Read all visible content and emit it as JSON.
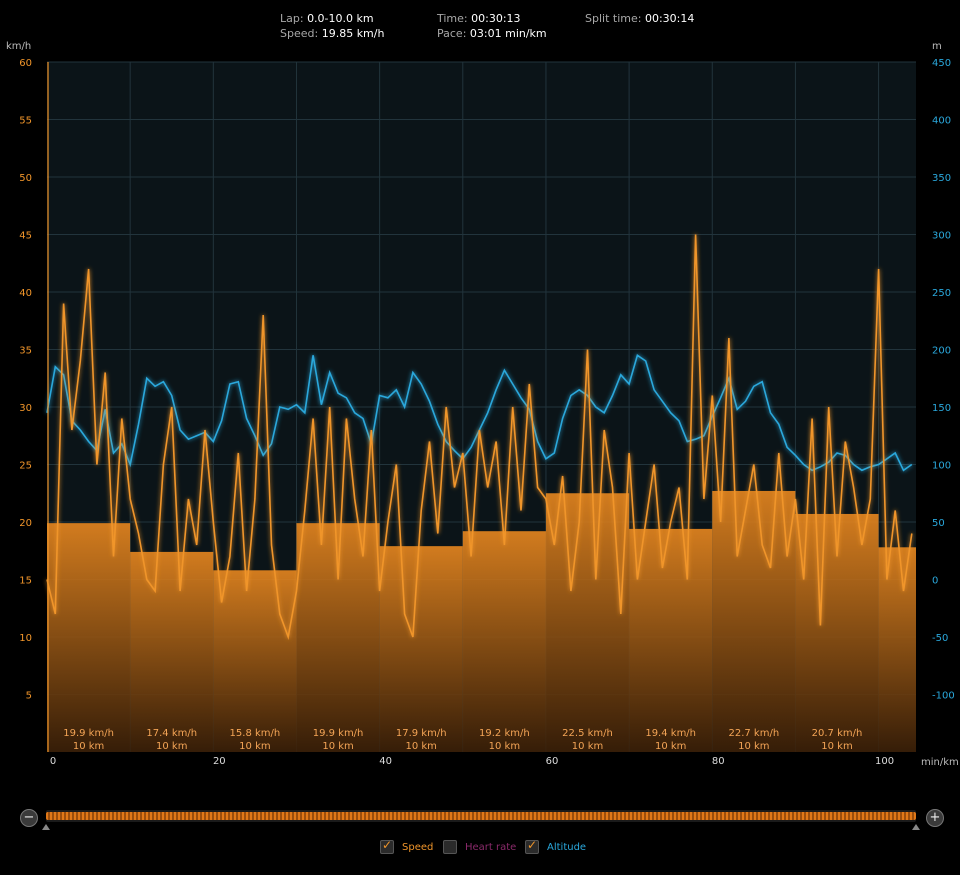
{
  "stats": {
    "lap_label": "Lap:",
    "lap_value": "0.0-10.0 km",
    "speed_label": "Speed:",
    "speed_value": "19.85 km/h",
    "time_label": "Time:",
    "time_value": "00:30:13",
    "pace_label": "Pace:",
    "pace_value": "03:01 min/km",
    "split_label": "Split time:",
    "split_value": "00:30:14"
  },
  "colors": {
    "speed": "#f0952a",
    "altitude": "#2aa8dc",
    "heart_rate": "#8a2a6a",
    "background": "#0b1418",
    "grid": "#22343c"
  },
  "legend": {
    "speed": {
      "label": "Speed",
      "checked": true
    },
    "heart_rate": {
      "label": "Heart rate",
      "checked": false
    },
    "altitude": {
      "label": "Altitude",
      "checked": true
    }
  },
  "zoom": {
    "out_glyph": "−",
    "in_glyph": "+"
  },
  "slider": {
    "start_fraction": 0.0,
    "end_fraction": 1.0
  },
  "chart_data": {
    "type": "line",
    "ylabel_left": "km/h",
    "ylabel_right": "m",
    "xlabel": "min/km",
    "ylim_left": [
      0,
      60
    ],
    "ylim_right": [
      -150,
      450
    ],
    "xlim": [
      0,
      104.5
    ],
    "yticks_left": [
      "5",
      "10",
      "15",
      "20",
      "25",
      "30",
      "35",
      "40",
      "45",
      "50",
      "55",
      "60"
    ],
    "yticks_right": [
      "-100",
      "-50",
      "0",
      "50",
      "100",
      "150",
      "200",
      "250",
      "300",
      "350",
      "400",
      "450"
    ],
    "xticks": [
      "0",
      "20",
      "40",
      "60",
      "80",
      "100"
    ],
    "grid": true,
    "laps": [
      {
        "x0": 0,
        "x1": 10,
        "speed": 19.9,
        "label": "19.9 km/h",
        "sub": "10 km"
      },
      {
        "x0": 10,
        "x1": 20,
        "speed": 17.4,
        "label": "17.4 km/h",
        "sub": "10 km"
      },
      {
        "x0": 20,
        "x1": 30,
        "speed": 15.8,
        "label": "15.8 km/h",
        "sub": "10 km"
      },
      {
        "x0": 30,
        "x1": 40,
        "speed": 19.9,
        "label": "19.9 km/h",
        "sub": "10 km"
      },
      {
        "x0": 40,
        "x1": 50,
        "speed": 17.9,
        "label": "17.9 km/h",
        "sub": "10 km"
      },
      {
        "x0": 50,
        "x1": 60,
        "speed": 19.2,
        "label": "19.2 km/h",
        "sub": "10 km"
      },
      {
        "x0": 60,
        "x1": 70,
        "speed": 22.5,
        "label": "22.5 km/h",
        "sub": "10 km"
      },
      {
        "x0": 70,
        "x1": 80,
        "speed": 19.4,
        "label": "19.4 km/h",
        "sub": "10 km"
      },
      {
        "x0": 80,
        "x1": 90,
        "speed": 22.7,
        "label": "22.7 km/h",
        "sub": "10 km"
      },
      {
        "x0": 90,
        "x1": 100,
        "speed": 20.7,
        "label": "20.7 km/h",
        "sub": "10 km"
      },
      {
        "x0": 100,
        "x1": 104.5,
        "speed": 17.8,
        "label": "",
        "sub": ""
      }
    ],
    "series": [
      {
        "name": "Speed",
        "x": [
          0,
          1,
          2,
          3,
          4,
          5,
          6,
          7,
          8,
          9,
          10,
          11,
          12,
          13,
          14,
          15,
          16,
          17,
          18,
          19,
          20,
          21,
          22,
          23,
          24,
          25,
          26,
          27,
          28,
          29,
          30,
          31,
          32,
          33,
          34,
          35,
          36,
          37,
          38,
          39,
          40,
          41,
          42,
          43,
          44,
          45,
          46,
          47,
          48,
          49,
          50,
          51,
          52,
          53,
          54,
          55,
          56,
          57,
          58,
          59,
          60,
          61,
          62,
          63,
          64,
          65,
          66,
          67,
          68,
          69,
          70,
          71,
          72,
          73,
          74,
          75,
          76,
          77,
          78,
          79,
          80,
          81,
          82,
          83,
          84,
          85,
          86,
          87,
          88,
          89,
          90,
          91,
          92,
          93,
          94,
          95,
          96,
          97,
          98,
          99,
          100,
          101,
          102,
          103,
          104
        ],
        "values": [
          15,
          12,
          39,
          28,
          34,
          42,
          25,
          33,
          17,
          29,
          22,
          19,
          15,
          14,
          25,
          30,
          14,
          22,
          18,
          28,
          20,
          13,
          17,
          26,
          14,
          22,
          38,
          18,
          12,
          10,
          14,
          21,
          29,
          18,
          30,
          15,
          29,
          22,
          17,
          28,
          14,
          20,
          25,
          12,
          10,
          21,
          27,
          19,
          30,
          23,
          26,
          17,
          28,
          23,
          27,
          18,
          30,
          21,
          32,
          23,
          22,
          18,
          24,
          14,
          20,
          35,
          15,
          28,
          23,
          12,
          26,
          15,
          20,
          25,
          16,
          20,
          23,
          15,
          45,
          22,
          31,
          20,
          36,
          17,
          21,
          25,
          18,
          16,
          26,
          17,
          22,
          15,
          29,
          11,
          30,
          17,
          27,
          23,
          18,
          22,
          42,
          15,
          21,
          14,
          19
        ]
      },
      {
        "name": "Altitude",
        "x": [
          0,
          1,
          2,
          3,
          4,
          5,
          6,
          7,
          8,
          9,
          10,
          11,
          12,
          13,
          14,
          15,
          16,
          17,
          18,
          19,
          20,
          21,
          22,
          23,
          24,
          25,
          26,
          27,
          28,
          29,
          30,
          31,
          32,
          33,
          34,
          35,
          36,
          37,
          38,
          39,
          40,
          41,
          42,
          43,
          44,
          45,
          46,
          47,
          48,
          49,
          50,
          51,
          52,
          53,
          54,
          55,
          56,
          57,
          58,
          59,
          60,
          61,
          62,
          63,
          64,
          65,
          66,
          67,
          68,
          69,
          70,
          71,
          72,
          73,
          74,
          75,
          76,
          77,
          78,
          79,
          80,
          81,
          82,
          83,
          84,
          85,
          86,
          87,
          88,
          89,
          90,
          91,
          92,
          93,
          94,
          95,
          96,
          97,
          98,
          99,
          100,
          101,
          102,
          103,
          104
        ],
        "values": [
          145,
          185,
          178,
          138,
          130,
          120,
          112,
          148,
          110,
          118,
          100,
          135,
          175,
          168,
          172,
          160,
          130,
          122,
          125,
          128,
          120,
          138,
          170,
          172,
          140,
          125,
          108,
          118,
          150,
          148,
          152,
          145,
          195,
          152,
          180,
          162,
          158,
          145,
          140,
          118,
          160,
          158,
          165,
          150,
          180,
          170,
          155,
          135,
          120,
          112,
          105,
          115,
          130,
          145,
          165,
          182,
          170,
          158,
          148,
          120,
          105,
          110,
          140,
          160,
          165,
          160,
          150,
          145,
          160,
          178,
          170,
          195,
          190,
          165,
          155,
          145,
          138,
          120,
          122,
          125,
          142,
          158,
          175,
          148,
          155,
          168,
          172,
          145,
          135,
          115,
          108,
          100,
          95,
          98,
          102,
          110,
          108,
          100,
          95,
          98,
          100,
          105,
          110,
          95,
          100
        ]
      }
    ]
  }
}
